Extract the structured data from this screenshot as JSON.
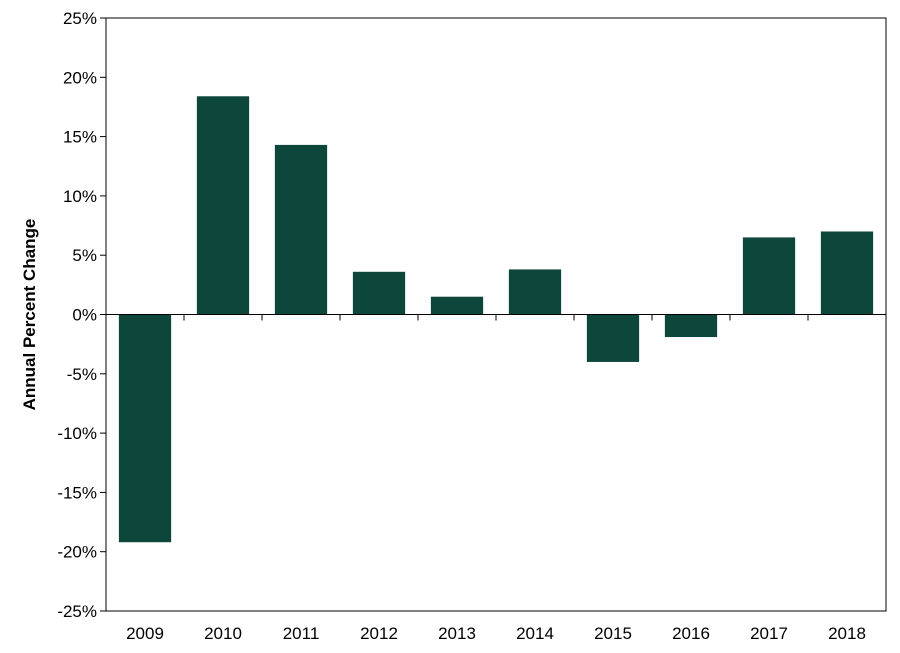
{
  "chart_data": {
    "type": "bar",
    "title": "",
    "xlabel": "",
    "ylabel": "Annual Percent Change",
    "categories": [
      "2009",
      "2010",
      "2011",
      "2012",
      "2013",
      "2014",
      "2015",
      "2016",
      "2017",
      "2018"
    ],
    "values": [
      -19.2,
      18.4,
      14.3,
      3.6,
      1.5,
      3.8,
      -4.0,
      -1.9,
      6.5,
      7.0
    ],
    "ylim": [
      -25,
      25
    ],
    "yticks": [
      25,
      20,
      15,
      10,
      5,
      0,
      -5,
      -10,
      -15,
      -20,
      -25
    ],
    "ytick_labels": [
      "25%",
      "20%",
      "15%",
      "10%",
      "5%",
      "0%",
      "-5%",
      "-10%",
      "-15%",
      "-20%",
      "-25%"
    ],
    "grid": false,
    "legend": "none",
    "bar_color": "#0d463a",
    "axis_color": "#000000"
  }
}
